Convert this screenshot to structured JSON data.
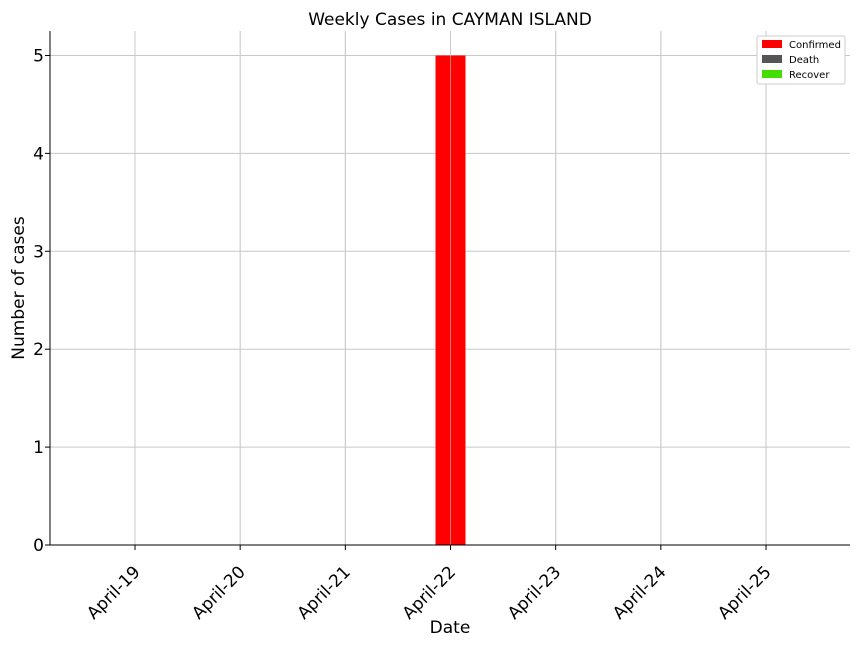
{
  "chart_data": {
    "type": "bar",
    "title": "Weekly Cases in CAYMAN ISLAND",
    "xlabel": "Date",
    "ylabel": "Number of cases",
    "categories": [
      "April-19",
      "April-20",
      "April-21",
      "April-22",
      "April-23",
      "April-24",
      "April-25"
    ],
    "series": [
      {
        "name": "Confirmed",
        "color": "#ff0000",
        "values": [
          0,
          0,
          0,
          5,
          0,
          0,
          0
        ]
      },
      {
        "name": "Death",
        "color": "#555555",
        "values": [
          0,
          0,
          0,
          0,
          0,
          0,
          0
        ]
      },
      {
        "name": "Recover",
        "color": "#44dd00",
        "values": [
          0,
          0,
          0,
          0,
          0,
          0,
          0
        ]
      }
    ],
    "ylim": [
      0,
      5.25
    ],
    "yticks": [
      0,
      1,
      2,
      3,
      4,
      5
    ],
    "grid": true,
    "legend_position": "top-right"
  }
}
